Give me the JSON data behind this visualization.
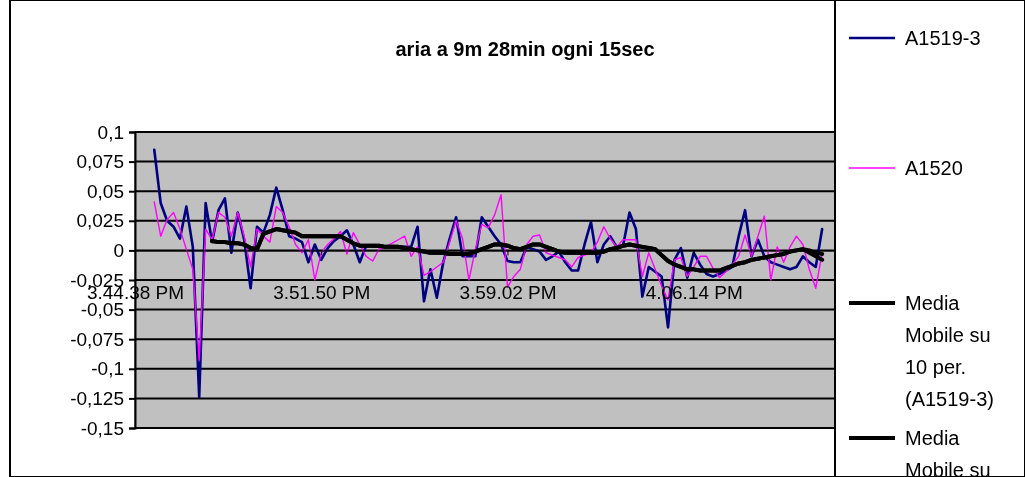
{
  "chart_data": {
    "type": "line",
    "title": "aria a 9m 28min ogni 15sec",
    "categories": [
      "3.44.38 PM",
      null,
      null,
      null,
      null,
      null,
      null,
      null,
      null,
      null,
      null,
      null,
      null,
      null,
      null,
      null,
      null,
      null,
      null,
      null,
      null,
      null,
      null,
      null,
      null,
      null,
      null,
      null,
      null,
      "3.51.50 PM",
      null,
      null,
      null,
      null,
      null,
      null,
      null,
      null,
      null,
      null,
      null,
      null,
      null,
      null,
      null,
      null,
      null,
      null,
      null,
      null,
      null,
      null,
      null,
      null,
      null,
      null,
      null,
      null,
      "3.59.02 PM",
      null,
      null,
      null,
      null,
      null,
      null,
      null,
      null,
      null,
      null,
      null,
      null,
      null,
      null,
      null,
      null,
      null,
      null,
      null,
      null,
      null,
      null,
      null,
      null,
      null,
      null,
      null,
      null,
      "4.06.14 PM",
      null,
      null,
      null,
      null,
      null,
      null,
      null,
      null,
      null,
      null,
      null,
      null,
      null,
      null,
      null,
      null,
      null,
      null,
      null,
      null,
      null,
      null
    ],
    "ylim": [
      -0.15,
      0.1
    ],
    "yticks": [
      {
        "value": 0.1,
        "label": "0,1"
      },
      {
        "value": 0.075,
        "label": "0,075"
      },
      {
        "value": 0.05,
        "label": "0,05"
      },
      {
        "value": 0.025,
        "label": "0,025"
      },
      {
        "value": 0,
        "label": "0"
      },
      {
        "value": -0.025,
        "label": "-0,025"
      },
      {
        "value": -0.05,
        "label": "-0,05"
      },
      {
        "value": -0.075,
        "label": "-0,075"
      },
      {
        "value": -0.1,
        "label": "-0,1"
      },
      {
        "value": -0.125,
        "label": "-0,125"
      },
      {
        "value": -0.15,
        "label": "-0,15"
      }
    ],
    "grid": "y",
    "legend": "right",
    "marker": "none",
    "series": [
      {
        "name": "A1519-3",
        "color": "#000080",
        "values": [
          null,
          null,
          null,
          0.085,
          0.04,
          0.025,
          0.02,
          0.01,
          0.037,
          0.003,
          -0.124,
          0.04,
          0.007,
          0.034,
          0.044,
          -0.002,
          0.032,
          0.009,
          -0.032,
          0.02,
          0.015,
          0.03,
          0.053,
          0.034,
          0.012,
          0.01,
          0.007,
          -0.01,
          0.005,
          -0.008,
          0.002,
          0.008,
          0.012,
          0.017,
          0.005,
          -0.01,
          0.004,
          0.004,
          0.003,
          0.003,
          0.003,
          0.003,
          0.003,
          0.003,
          0.02,
          -0.043,
          -0.016,
          -0.04,
          -0.01,
          0.01,
          0.028,
          -0.005,
          -0.005,
          -0.005,
          0.028,
          0.02,
          0.012,
          0.005,
          -0.009,
          -0.01,
          -0.01,
          0.003,
          0.001,
          -0.001,
          -0.008,
          -0.005,
          -0.001,
          -0.01,
          -0.017,
          -0.017,
          0.005,
          0.024,
          -0.01,
          0.005,
          0.012,
          0.003,
          0.004,
          0.032,
          0.018,
          -0.039,
          -0.014,
          -0.018,
          -0.022,
          -0.065,
          -0.008,
          0.002,
          -0.023,
          -0.002,
          -0.012,
          -0.02,
          -0.022,
          -0.02,
          -0.017,
          -0.014,
          0.012,
          0.034,
          -0.005,
          0.009,
          -0.005,
          -0.01,
          -0.012,
          -0.014,
          -0.016,
          -0.014,
          -0.005,
          -0.01,
          -0.014,
          0.018,
          null,
          null
        ]
      },
      {
        "name": "A1520",
        "color": "#ff00ff",
        "values": [
          null,
          null,
          null,
          0.041,
          0.012,
          0.026,
          0.032,
          0.018,
          0.001,
          -0.016,
          -0.093,
          0.018,
          0.009,
          0.032,
          0.028,
          0.012,
          0.032,
          0.012,
          -0.014,
          0.018,
          0.012,
          0.007,
          0.037,
          0.032,
          0.02,
          0.005,
          -0.002,
          0.009,
          -0.025,
          -0.002,
          0.005,
          0.01,
          0.016,
          -0.003,
          0.015,
          0.005,
          -0.005,
          -0.009,
          0.001,
          0.003,
          0.006,
          0.009,
          0.012,
          -0.005,
          0.003,
          -0.021,
          -0.018,
          -0.014,
          -0.01,
          0.007,
          0.025,
          0.01,
          -0.025,
          0.001,
          0.022,
          0.019,
          0.03,
          0.047,
          -0.031,
          -0.022,
          -0.016,
          0.005,
          0.012,
          0.013,
          -0.002,
          -0.004,
          -0.006,
          -0.008,
          -0.014,
          -0.006,
          -0.004,
          -0.002,
          0.007,
          0.02,
          0.01,
          0.003,
          0.009,
          0.009,
          0.009,
          -0.022,
          -0.002,
          -0.016,
          -0.03,
          -0.042,
          -0.008,
          -0.006,
          -0.022,
          -0.014,
          -0.005,
          -0.005,
          -0.015,
          -0.023,
          -0.018,
          -0.012,
          -0.005,
          0.013,
          -0.005,
          0.012,
          0.029,
          -0.025,
          0.003,
          -0.01,
          0.003,
          0.012,
          0.005,
          -0.016,
          -0.032,
          -0.002,
          null,
          null
        ]
      },
      {
        "name": "Media Mobile su 10 per. (A1519-3)",
        "color": "#000000",
        "values": [
          null,
          null,
          null,
          null,
          null,
          null,
          null,
          null,
          null,
          null,
          null,
          null,
          0.008,
          0.007,
          0.007,
          0.006,
          0.006,
          0.005,
          0.002,
          0.001,
          0.014,
          0.016,
          0.018,
          0.017,
          0.016,
          0.015,
          0.012,
          0.012,
          0.012,
          0.012,
          0.012,
          0.012,
          0.012,
          0.009,
          0.006,
          0.004,
          0.004,
          0.004,
          0.004,
          0.003,
          0.003,
          0.003,
          0.002,
          0.001,
          0,
          -0.001,
          -0.002,
          -0.002,
          -0.002,
          -0.003,
          -0.003,
          -0.003,
          -0.003,
          -0.001,
          0.001,
          0.003,
          0.005,
          0.005,
          0.004,
          0.002,
          0.001,
          0.003,
          0.005,
          0.005,
          0.003,
          0.001,
          -0.001,
          -0.002,
          -0.002,
          -0.002,
          -0.002,
          -0.002,
          -0.002,
          -0.001,
          0.001,
          0.002,
          0.004,
          0.005,
          0.004,
          0.003,
          0.002,
          0.001,
          -0.004,
          -0.009,
          -0.012,
          -0.014,
          -0.016,
          -0.016,
          -0.017,
          -0.017,
          -0.017,
          -0.017,
          -0.015,
          -0.013,
          -0.011,
          -0.01,
          -0.008,
          -0.007,
          -0.006,
          -0.005,
          -0.004,
          -0.003,
          -0.001,
          0,
          0.001,
          0,
          -0.002,
          -0.003,
          null,
          null
        ]
      },
      {
        "name": "Media Mobile su",
        "color": "#000000",
        "values": [
          null,
          null,
          null,
          null,
          null,
          null,
          null,
          null,
          null,
          null,
          null,
          null,
          0.008,
          0.007,
          0.007,
          0.006,
          0.006,
          0.005,
          0.002,
          0.001,
          0.014,
          0.016,
          0.018,
          0.017,
          0.016,
          0.015,
          0.012,
          0.012,
          0.012,
          0.012,
          0.012,
          0.012,
          0.012,
          0.009,
          0.006,
          0.004,
          0.004,
          0.004,
          0.004,
          0.003,
          0.003,
          0.003,
          0.002,
          0.001,
          0,
          -0.001,
          -0.002,
          -0.002,
          -0.002,
          -0.003,
          -0.003,
          -0.003,
          -0.003,
          -0.001,
          0.001,
          0.003,
          0.005,
          0.005,
          0.004,
          0.002,
          0.001,
          0.003,
          0.005,
          0.005,
          0.003,
          0.001,
          -0.001,
          -0.002,
          -0.002,
          -0.002,
          -0.002,
          -0.002,
          -0.002,
          -0.001,
          0.001,
          0.002,
          0.004,
          0.005,
          0.004,
          0.003,
          0.002,
          0.001,
          -0.004,
          -0.009,
          -0.012,
          -0.014,
          -0.016,
          -0.016,
          -0.017,
          -0.017,
          -0.017,
          -0.017,
          -0.015,
          -0.013,
          -0.011,
          -0.01,
          -0.008,
          -0.007,
          -0.006,
          -0.005,
          -0.004,
          -0.003,
          -0.001,
          0,
          0.001,
          -0.002,
          -0.005,
          -0.008,
          null,
          null
        ]
      }
    ]
  }
}
